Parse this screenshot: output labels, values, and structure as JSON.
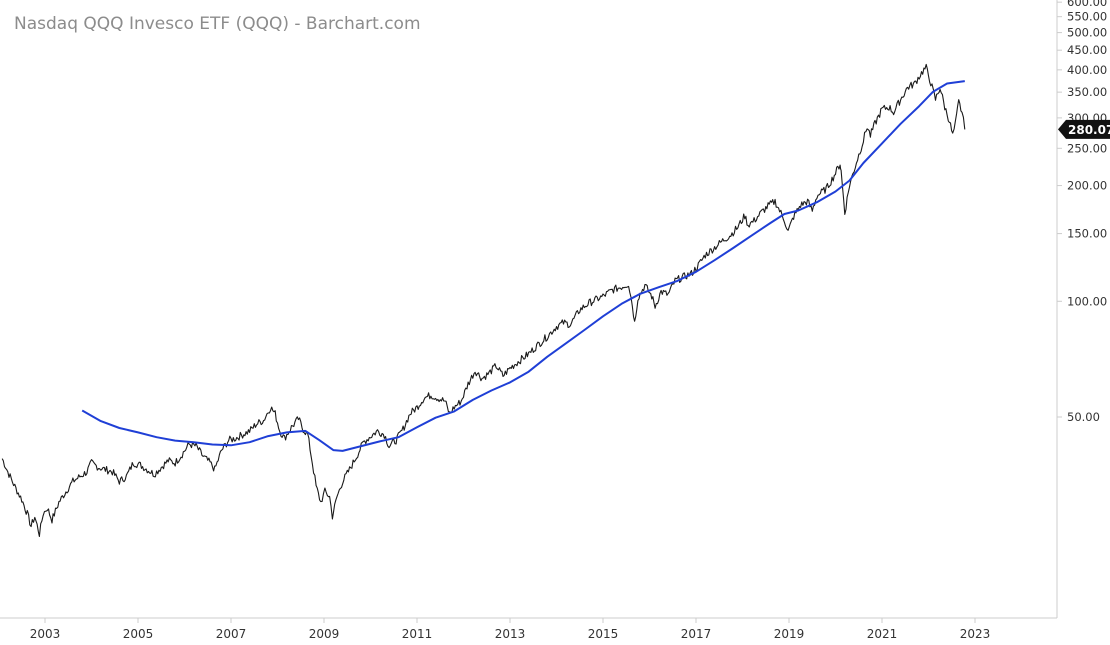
{
  "chart_data": {
    "type": "line",
    "title": "Nasdaq QQQ Invesco ETF (QQQ) - Barchart.com",
    "scale": "log",
    "grid": false,
    "colors": {
      "price": "#1a1a1a",
      "moving_average": "#1f3fd6",
      "badge": "#111111",
      "axis": "#cccccc"
    },
    "y_ticks": [
      {
        "value": 600,
        "label": "600.00"
      },
      {
        "value": 550,
        "label": "550.00"
      },
      {
        "value": 500,
        "label": "500.00"
      },
      {
        "value": 450,
        "label": "450.00"
      },
      {
        "value": 400,
        "label": "400.00"
      },
      {
        "value": 350,
        "label": "350.00"
      },
      {
        "value": 300,
        "label": "300.00"
      },
      {
        "value": 250,
        "label": "250.00"
      },
      {
        "value": 200,
        "label": "200.00"
      },
      {
        "value": 150,
        "label": "150.00"
      },
      {
        "value": 100,
        "label": "100.00"
      },
      {
        "value": 50,
        "label": "50.00"
      }
    ],
    "x_ticks": [
      {
        "value": 2003,
        "label": "2003"
      },
      {
        "value": 2005,
        "label": "2005"
      },
      {
        "value": 2007,
        "label": "2007"
      },
      {
        "value": 2009,
        "label": "2009"
      },
      {
        "value": 2011,
        "label": "2011"
      },
      {
        "value": 2013,
        "label": "2013"
      },
      {
        "value": 2015,
        "label": "2015"
      },
      {
        "value": 2017,
        "label": "2017"
      },
      {
        "value": 2019,
        "label": "2019"
      },
      {
        "value": 2021,
        "label": "2021"
      },
      {
        "value": 2023,
        "label": "2023"
      }
    ],
    "last_price": 280.07,
    "last_price_label": "280.07",
    "series": [
      {
        "type": "price",
        "points": [
          [
            2002.08,
            39
          ],
          [
            2002.2,
            36
          ],
          [
            2002.35,
            33
          ],
          [
            2002.5,
            30.5
          ],
          [
            2002.62,
            28
          ],
          [
            2002.7,
            26
          ],
          [
            2002.78,
            27.5
          ],
          [
            2002.88,
            24.8
          ],
          [
            2002.96,
            28
          ],
          [
            2003.05,
            29
          ],
          [
            2003.15,
            27
          ],
          [
            2003.3,
            30
          ],
          [
            2003.45,
            32
          ],
          [
            2003.6,
            34
          ],
          [
            2003.75,
            35
          ],
          [
            2003.9,
            36
          ],
          [
            2004.0,
            38
          ],
          [
            2004.15,
            37
          ],
          [
            2004.3,
            36.5
          ],
          [
            2004.45,
            36
          ],
          [
            2004.6,
            34
          ],
          [
            2004.75,
            35
          ],
          [
            2004.9,
            38
          ],
          [
            2005.05,
            37.5
          ],
          [
            2005.2,
            36.5
          ],
          [
            2005.35,
            35.5
          ],
          [
            2005.5,
            37
          ],
          [
            2005.65,
            38.5
          ],
          [
            2005.8,
            38
          ],
          [
            2005.95,
            40
          ],
          [
            2006.1,
            42.5
          ],
          [
            2006.25,
            42
          ],
          [
            2006.4,
            39.5
          ],
          [
            2006.55,
            38
          ],
          [
            2006.65,
            36.5
          ],
          [
            2006.8,
            41
          ],
          [
            2006.95,
            43.5
          ],
          [
            2007.1,
            44
          ],
          [
            2007.25,
            45
          ],
          [
            2007.4,
            46
          ],
          [
            2007.55,
            48
          ],
          [
            2007.7,
            49
          ],
          [
            2007.85,
            53
          ],
          [
            2007.95,
            51
          ],
          [
            2008.05,
            46
          ],
          [
            2008.15,
            44
          ],
          [
            2008.3,
            47
          ],
          [
            2008.45,
            49.5
          ],
          [
            2008.55,
            46.5
          ],
          [
            2008.65,
            45
          ],
          [
            2008.75,
            38
          ],
          [
            2008.83,
            33
          ],
          [
            2008.93,
            30
          ],
          [
            2009.02,
            32
          ],
          [
            2009.12,
            31
          ],
          [
            2009.18,
            27.6
          ],
          [
            2009.28,
            31
          ],
          [
            2009.4,
            34
          ],
          [
            2009.55,
            36.5
          ],
          [
            2009.7,
            39.5
          ],
          [
            2009.85,
            43
          ],
          [
            2010.0,
            44.5
          ],
          [
            2010.15,
            46
          ],
          [
            2010.3,
            45
          ],
          [
            2010.4,
            42
          ],
          [
            2010.55,
            43.5
          ],
          [
            2010.7,
            46.5
          ],
          [
            2010.85,
            51
          ],
          [
            2011.0,
            53
          ],
          [
            2011.15,
            56
          ],
          [
            2011.3,
            57
          ],
          [
            2011.45,
            56
          ],
          [
            2011.6,
            55
          ],
          [
            2011.7,
            51
          ],
          [
            2011.8,
            53
          ],
          [
            2011.95,
            55
          ],
          [
            2012.1,
            61
          ],
          [
            2012.25,
            66
          ],
          [
            2012.4,
            63
          ],
          [
            2012.55,
            65
          ],
          [
            2012.7,
            68
          ],
          [
            2012.85,
            64
          ],
          [
            2013.0,
            67
          ],
          [
            2013.2,
            70
          ],
          [
            2013.4,
            73
          ],
          [
            2013.6,
            77
          ],
          [
            2013.8,
            81
          ],
          [
            2014.0,
            86
          ],
          [
            2014.15,
            88
          ],
          [
            2014.3,
            87
          ],
          [
            2014.5,
            95
          ],
          [
            2014.7,
            99
          ],
          [
            2014.85,
            101
          ],
          [
            2015.0,
            103
          ],
          [
            2015.2,
            107
          ],
          [
            2015.4,
            109
          ],
          [
            2015.55,
            111
          ],
          [
            2015.63,
            98
          ],
          [
            2015.68,
            88
          ],
          [
            2015.75,
            102
          ],
          [
            2015.9,
            110
          ],
          [
            2016.05,
            103
          ],
          [
            2016.12,
            97
          ],
          [
            2016.25,
            106
          ],
          [
            2016.4,
            104
          ],
          [
            2016.55,
            113
          ],
          [
            2016.75,
            116
          ],
          [
            2016.9,
            118
          ],
          [
            2017.05,
            124
          ],
          [
            2017.2,
            132
          ],
          [
            2017.4,
            138
          ],
          [
            2017.55,
            143
          ],
          [
            2017.75,
            149
          ],
          [
            2017.9,
            156
          ],
          [
            2018.05,
            167
          ],
          [
            2018.12,
            158
          ],
          [
            2018.25,
            162
          ],
          [
            2018.4,
            170
          ],
          [
            2018.55,
            177
          ],
          [
            2018.7,
            182
          ],
          [
            2018.8,
            172
          ],
          [
            2018.9,
            163
          ],
          [
            2018.98,
            152
          ],
          [
            2019.1,
            166
          ],
          [
            2019.25,
            178
          ],
          [
            2019.4,
            182
          ],
          [
            2019.5,
            172
          ],
          [
            2019.6,
            188
          ],
          [
            2019.8,
            196
          ],
          [
            2019.95,
            210
          ],
          [
            2020.1,
            228
          ],
          [
            2020.12,
            218
          ],
          [
            2020.2,
            170
          ],
          [
            2020.3,
            200
          ],
          [
            2020.45,
            230
          ],
          [
            2020.6,
            262
          ],
          [
            2020.68,
            285
          ],
          [
            2020.75,
            270
          ],
          [
            2020.85,
            290
          ],
          [
            2021.0,
            316
          ],
          [
            2021.15,
            320
          ],
          [
            2021.25,
            310
          ],
          [
            2021.4,
            335
          ],
          [
            2021.55,
            360
          ],
          [
            2021.7,
            368
          ],
          [
            2021.8,
            385
          ],
          [
            2021.9,
            400
          ],
          [
            2021.95,
            405
          ],
          [
            2022.05,
            370
          ],
          [
            2022.15,
            335
          ],
          [
            2022.25,
            360
          ],
          [
            2022.35,
            320
          ],
          [
            2022.45,
            295
          ],
          [
            2022.52,
            270
          ],
          [
            2022.58,
            290
          ],
          [
            2022.65,
            330
          ],
          [
            2022.72,
            310
          ],
          [
            2022.78,
            280.07
          ]
        ]
      },
      {
        "type": "moving_average",
        "points": [
          [
            2003.8,
            52
          ],
          [
            2004.2,
            48.8
          ],
          [
            2004.6,
            46.8
          ],
          [
            2005.0,
            45.6
          ],
          [
            2005.4,
            44.3
          ],
          [
            2005.8,
            43.4
          ],
          [
            2006.2,
            43
          ],
          [
            2006.6,
            42.4
          ],
          [
            2007.0,
            42.2
          ],
          [
            2007.4,
            43
          ],
          [
            2007.8,
            44.6
          ],
          [
            2008.2,
            45.6
          ],
          [
            2008.6,
            46
          ],
          [
            2008.9,
            43.5
          ],
          [
            2009.2,
            41
          ],
          [
            2009.4,
            40.8
          ],
          [
            2009.8,
            42
          ],
          [
            2010.2,
            43.2
          ],
          [
            2010.6,
            44.3
          ],
          [
            2011.0,
            47
          ],
          [
            2011.4,
            49.8
          ],
          [
            2011.8,
            51.7
          ],
          [
            2012.2,
            55.4
          ],
          [
            2012.6,
            58.6
          ],
          [
            2013.0,
            61.5
          ],
          [
            2013.4,
            65.6
          ],
          [
            2013.8,
            71.7
          ],
          [
            2014.2,
            77.7
          ],
          [
            2014.6,
            84.2
          ],
          [
            2015.0,
            91.4
          ],
          [
            2015.4,
            98.5
          ],
          [
            2015.8,
            104.6
          ],
          [
            2016.2,
            108.8
          ],
          [
            2016.6,
            113
          ],
          [
            2017.0,
            119.3
          ],
          [
            2017.4,
            127.9
          ],
          [
            2017.8,
            137.6
          ],
          [
            2018.2,
            148.4
          ],
          [
            2018.6,
            159.8
          ],
          [
            2018.9,
            168.7
          ],
          [
            2019.2,
            172.3
          ],
          [
            2019.6,
            181
          ],
          [
            2020.0,
            193
          ],
          [
            2020.3,
            206
          ],
          [
            2020.6,
            229
          ],
          [
            2021.0,
            257.5
          ],
          [
            2021.4,
            289.5
          ],
          [
            2021.8,
            322
          ],
          [
            2022.1,
            351
          ],
          [
            2022.4,
            368.5
          ],
          [
            2022.78,
            374
          ]
        ]
      }
    ]
  }
}
